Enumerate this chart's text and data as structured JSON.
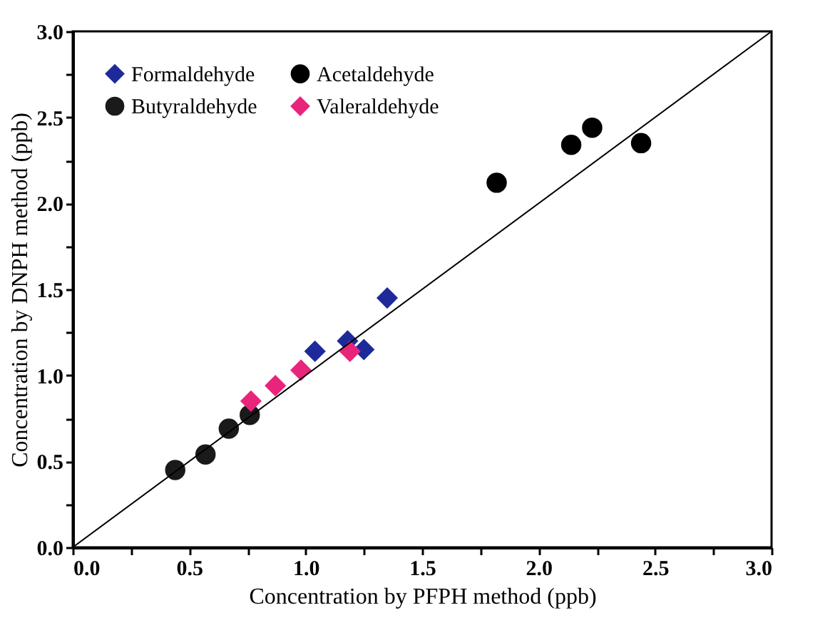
{
  "chart_data": {
    "type": "scatter",
    "xlabel": "Concentration by PFPH method (ppb)",
    "ylabel": "Concentration by DNPH method (ppb)",
    "xlim": [
      0,
      3
    ],
    "ylim": [
      0,
      3
    ],
    "xticks": [
      {
        "value": 0,
        "label": "0.0"
      },
      {
        "value": 0.25,
        "label": null
      },
      0.5,
      {
        "value": 0.75,
        "label": null
      },
      {
        "value": 1,
        "label": "1.0"
      },
      {
        "value": 1.25,
        "label": null
      },
      1.5,
      {
        "value": 1.75,
        "label": null
      },
      {
        "value": 2,
        "label": "2.0"
      },
      {
        "value": 2.25,
        "label": null
      },
      2.5,
      {
        "value": 2.75,
        "label": null
      },
      {
        "value": 3,
        "label": "3.0"
      }
    ],
    "yticks": [
      {
        "value": 0,
        "label": "0.0"
      },
      {
        "value": 0.25,
        "label": null
      },
      0.5,
      {
        "value": 0.75,
        "label": null
      },
      {
        "value": 1,
        "label": "1.0"
      },
      {
        "value": 1.25,
        "label": null
      },
      1.5,
      {
        "value": 1.75,
        "label": null
      },
      {
        "value": 2,
        "label": "2.0"
      },
      {
        "value": 2.25,
        "label": null
      },
      2.5,
      {
        "value": 2.75,
        "label": null
      },
      {
        "value": 3,
        "label": "3.0"
      }
    ],
    "grid": false,
    "legend": "top left",
    "series": [
      {
        "name": "Formaldehyde",
        "color": "#1f2a9a",
        "marker": "diamond",
        "x": [
          1.04,
          1.18,
          1.25,
          1.35
        ],
        "values": [
          1.14,
          1.2,
          1.15,
          1.45
        ]
      },
      {
        "name": "Butyraldehyde",
        "color": "#1a1a1a",
        "marker": "circle",
        "x": [
          0.44,
          0.57,
          0.67,
          0.76
        ],
        "values": [
          0.45,
          0.54,
          0.69,
          0.77
        ]
      },
      {
        "name": "Acetaldehyde",
        "color": "#000000",
        "marker": "circle",
        "x": [
          1.82,
          2.14,
          2.23,
          2.44
        ],
        "values": [
          2.12,
          2.34,
          2.44,
          2.35
        ]
      },
      {
        "name": "Valeraldehyde",
        "color": "#e8257a",
        "marker": "diamond",
        "x": [
          0.765,
          0.87,
          0.98,
          1.19
        ],
        "values": [
          0.85,
          0.94,
          1.03,
          1.14
        ]
      },
      {
        "type": "line",
        "color": "#000000",
        "x": [
          0,
          3
        ],
        "values": [
          0,
          3
        ]
      }
    ]
  }
}
